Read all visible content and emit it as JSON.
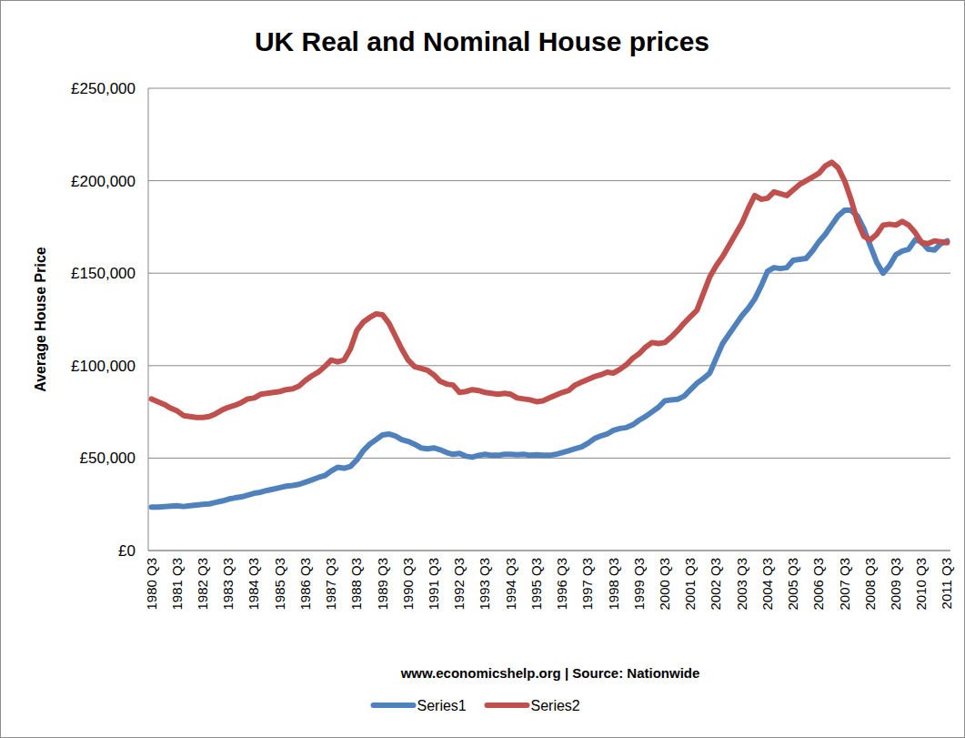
{
  "chart_data": {
    "type": "line",
    "title": "UK Real and Nominal House prices",
    "x_label": "www.economicshelp.org | Source: Nationwide",
    "y_label": "Average House Price",
    "categories": [
      "1980 Q3",
      null,
      null,
      null,
      "1981 Q3",
      null,
      null,
      null,
      "1982 Q3",
      null,
      null,
      null,
      "1983 Q3",
      null,
      null,
      null,
      "1984 Q3",
      null,
      null,
      null,
      "1985 Q3",
      null,
      null,
      null,
      "1986 Q3",
      null,
      null,
      null,
      "1987 Q3",
      null,
      null,
      null,
      "1988 Q3",
      null,
      null,
      null,
      "1989 Q3",
      null,
      null,
      null,
      "1990 Q3",
      null,
      null,
      null,
      "1991 Q3",
      null,
      null,
      null,
      "1992 Q3",
      null,
      null,
      null,
      "1993 Q3",
      null,
      null,
      null,
      "1994 Q3",
      null,
      null,
      null,
      "1995 Q3",
      null,
      null,
      null,
      "1996 Q3",
      null,
      null,
      null,
      "1997 Q3",
      null,
      null,
      null,
      "1998 Q3",
      null,
      null,
      null,
      "1999 Q3",
      null,
      null,
      null,
      "2000 Q3",
      null,
      null,
      null,
      "2001 Q3",
      null,
      null,
      null,
      "2002 Q3",
      null,
      null,
      null,
      "2003 Q3",
      null,
      null,
      null,
      "2004 Q3",
      null,
      null,
      null,
      "2005 Q3",
      null,
      null,
      null,
      "2006 Q3",
      null,
      null,
      null,
      "2007 Q3",
      null,
      null,
      null,
      "2008 Q3",
      null,
      null,
      null,
      "2009 Q3",
      null,
      null,
      null,
      "2010 Q3",
      null,
      null,
      null,
      "2011 Q3"
    ],
    "series": [
      {
        "name": "Series1",
        "color": "#4f81bd",
        "values": [
          23500,
          23500,
          23800,
          24000,
          24200,
          23800,
          24200,
          24600,
          25000,
          25200,
          26000,
          26800,
          27800,
          28500,
          29000,
          30000,
          31000,
          31500,
          32500,
          33200,
          34000,
          34800,
          35200,
          35800,
          37000,
          38200,
          39500,
          40500,
          43000,
          45000,
          44500,
          45500,
          49000,
          54000,
          57500,
          60000,
          62500,
          63000,
          62000,
          60000,
          59000,
          57500,
          55500,
          55000,
          55500,
          54500,
          53000,
          52000,
          52500,
          51000,
          50500,
          51500,
          52000,
          51500,
          51500,
          52000,
          52000,
          51800,
          52000,
          51500,
          51800,
          51600,
          51500,
          52000,
          53000,
          54000,
          55000,
          56000,
          58000,
          60500,
          62000,
          63000,
          65000,
          66000,
          66500,
          68000,
          70500,
          72500,
          75000,
          77500,
          81000,
          81500,
          81800,
          83500,
          87000,
          90500,
          93000,
          96000,
          104000,
          112000,
          117000,
          122000,
          127000,
          131000,
          136000,
          143000,
          151000,
          153000,
          152500,
          153000,
          157000,
          157500,
          158000,
          162000,
          167000,
          171000,
          176000,
          181000,
          184000,
          184000,
          181000,
          174000,
          165000,
          156000,
          150000,
          154000,
          160000,
          162000,
          163000,
          168000,
          167000,
          163000,
          162500,
          166000,
          167500
        ]
      },
      {
        "name": "Series2",
        "color": "#c0504d",
        "values": [
          82000,
          80500,
          79000,
          77000,
          75500,
          73000,
          72500,
          72000,
          72000,
          72500,
          74000,
          76000,
          77500,
          78500,
          80000,
          82000,
          82500,
          84500,
          85000,
          85500,
          86000,
          87000,
          87500,
          89000,
          92000,
          94500,
          96500,
          99500,
          103000,
          102000,
          103000,
          109000,
          119000,
          123500,
          126000,
          128000,
          127500,
          123000,
          116000,
          109000,
          103000,
          99500,
          98500,
          97500,
          95000,
          91500,
          90000,
          89500,
          85500,
          86000,
          87000,
          86500,
          85500,
          85000,
          84500,
          85000,
          84500,
          82500,
          82000,
          81500,
          80500,
          81000,
          82500,
          84000,
          85500,
          86500,
          89500,
          91000,
          92500,
          94000,
          95000,
          96500,
          96000,
          98000,
          100500,
          104000,
          106500,
          110000,
          112500,
          112000,
          112500,
          115500,
          119000,
          123000,
          126500,
          130000,
          139000,
          148000,
          154000,
          159000,
          165000,
          171000,
          177000,
          185000,
          192000,
          190000,
          190500,
          194000,
          193000,
          192000,
          195000,
          198000,
          200000,
          202000,
          204000,
          208000,
          210000,
          207000,
          200000,
          190000,
          178000,
          170000,
          168000,
          171000,
          176000,
          176500,
          176000,
          178000,
          176000,
          172000,
          166500,
          166000,
          167500,
          167000,
          166500
        ]
      }
    ],
    "ylim": [
      0,
      250000
    ],
    "yticks": [
      {
        "value": 0,
        "label": "£0"
      },
      {
        "value": 50000,
        "label": "£50,000"
      },
      {
        "value": 100000,
        "label": "£100,000"
      },
      {
        "value": 150000,
        "label": "£150,000"
      },
      {
        "value": 200000,
        "label": "£200,000"
      },
      {
        "value": 250000,
        "label": "£250,000"
      }
    ],
    "grid": true,
    "legend": "bottom"
  }
}
